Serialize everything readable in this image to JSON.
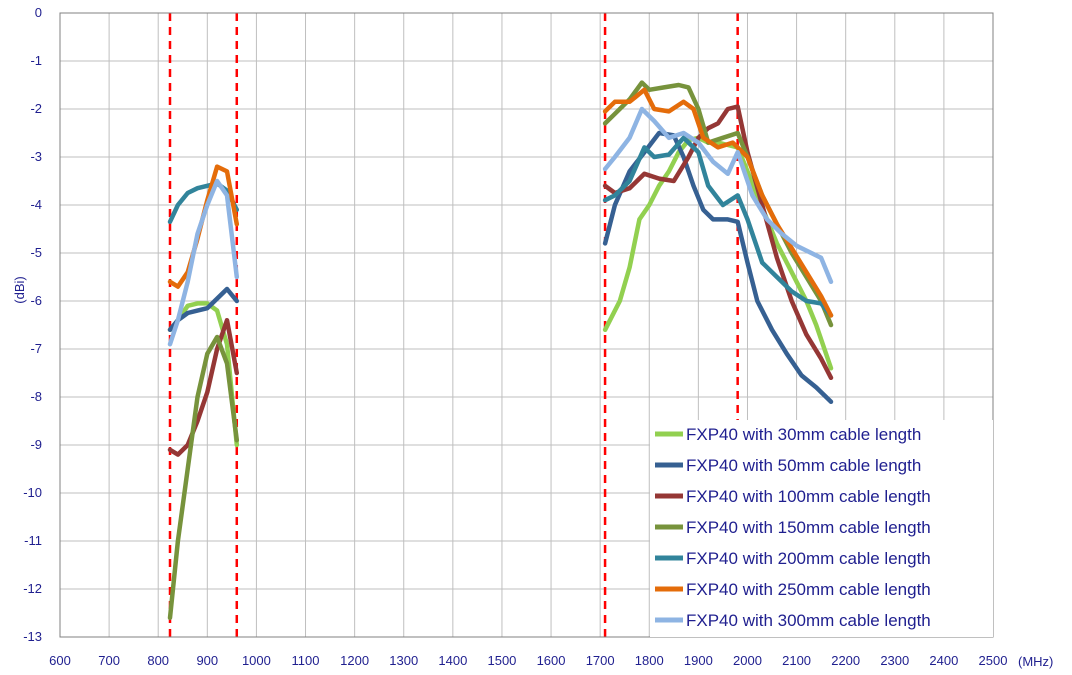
{
  "chart_data": {
    "type": "line",
    "xlabel": "(MHz)",
    "ylabel": "(dBi)",
    "xlim": [
      600,
      2500
    ],
    "ylim": [
      -13,
      0
    ],
    "xticks": [
      600,
      700,
      800,
      900,
      1000,
      1100,
      1200,
      1300,
      1400,
      1500,
      1600,
      1700,
      1800,
      1900,
      2000,
      2100,
      2200,
      2300,
      2400,
      2500
    ],
    "yticks": [
      0,
      -1,
      -2,
      -3,
      -4,
      -5,
      -6,
      -7,
      -8,
      -9,
      -10,
      -11,
      -12,
      -13
    ],
    "grid": true,
    "legend_position": "bottom-right",
    "band_markers": [
      824,
      960,
      1710,
      1980
    ],
    "series": [
      {
        "name": "FXP40 with 30mm cable length",
        "color": "#92d050",
        "segments": [
          [
            [
              824,
              -6.6
            ],
            [
              840,
              -6.4
            ],
            [
              860,
              -6.1
            ],
            [
              880,
              -6.05
            ],
            [
              900,
              -6.05
            ],
            [
              920,
              -6.2
            ],
            [
              940,
              -6.9
            ],
            [
              960,
              -9.0
            ]
          ],
          [
            [
              1710,
              -6.6
            ],
            [
              1740,
              -6.0
            ],
            [
              1760,
              -5.3
            ],
            [
              1780,
              -4.3
            ],
            [
              1800,
              -4.0
            ],
            [
              1820,
              -3.6
            ],
            [
              1840,
              -3.3
            ],
            [
              1860,
              -2.9
            ],
            [
              1880,
              -2.65
            ],
            [
              1900,
              -2.6
            ],
            [
              1920,
              -2.7
            ],
            [
              1940,
              -2.7
            ],
            [
              1960,
              -2.75
            ],
            [
              1980,
              -2.8
            ],
            [
              2000,
              -3.3
            ],
            [
              2020,
              -3.8
            ],
            [
              2040,
              -4.3
            ],
            [
              2060,
              -4.8
            ],
            [
              2080,
              -5.2
            ],
            [
              2100,
              -5.6
            ],
            [
              2120,
              -6.0
            ],
            [
              2140,
              -6.5
            ],
            [
              2170,
              -7.4
            ]
          ]
        ]
      },
      {
        "name": "FXP40 with 50mm cable length",
        "color": "#366092",
        "segments": [
          [
            [
              824,
              -6.6
            ],
            [
              840,
              -6.4
            ],
            [
              860,
              -6.25
            ],
            [
              880,
              -6.2
            ],
            [
              900,
              -6.15
            ],
            [
              920,
              -5.95
            ],
            [
              940,
              -5.75
            ],
            [
              960,
              -6.0
            ]
          ],
          [
            [
              1710,
              -4.8
            ],
            [
              1730,
              -4.0
            ],
            [
              1760,
              -3.3
            ],
            [
              1790,
              -2.9
            ],
            [
              1820,
              -2.5
            ],
            [
              1850,
              -2.55
            ],
            [
              1870,
              -3.0
            ],
            [
              1890,
              -3.6
            ],
            [
              1910,
              -4.1
            ],
            [
              1930,
              -4.3
            ],
            [
              1960,
              -4.3
            ],
            [
              1980,
              -4.35
            ],
            [
              2000,
              -5.2
            ],
            [
              2020,
              -6.0
            ],
            [
              2050,
              -6.6
            ],
            [
              2080,
              -7.1
            ],
            [
              2110,
              -7.55
            ],
            [
              2140,
              -7.8
            ],
            [
              2170,
              -8.1
            ]
          ]
        ]
      },
      {
        "name": "FXP40 with 100mm cable length",
        "color": "#953735",
        "segments": [
          [
            [
              824,
              -9.1
            ],
            [
              840,
              -9.2
            ],
            [
              860,
              -9.0
            ],
            [
              880,
              -8.5
            ],
            [
              900,
              -7.9
            ],
            [
              920,
              -7.0
            ],
            [
              940,
              -6.4
            ],
            [
              960,
              -7.5
            ]
          ],
          [
            [
              1710,
              -3.6
            ],
            [
              1730,
              -3.75
            ],
            [
              1760,
              -3.65
            ],
            [
              1790,
              -3.35
            ],
            [
              1820,
              -3.45
            ],
            [
              1850,
              -3.5
            ],
            [
              1880,
              -3.0
            ],
            [
              1900,
              -2.6
            ],
            [
              1920,
              -2.4
            ],
            [
              1940,
              -2.3
            ],
            [
              1960,
              -2.0
            ],
            [
              1980,
              -1.95
            ],
            [
              2000,
              -2.9
            ],
            [
              2030,
              -4.0
            ],
            [
              2060,
              -5.1
            ],
            [
              2090,
              -6.0
            ],
            [
              2120,
              -6.7
            ],
            [
              2150,
              -7.2
            ],
            [
              2170,
              -7.6
            ]
          ]
        ]
      },
      {
        "name": "FXP40 with 150mm cable length",
        "color": "#77933c",
        "segments": [
          [
            [
              824,
              -12.6
            ],
            [
              840,
              -11.0
            ],
            [
              860,
              -9.5
            ],
            [
              880,
              -8.0
            ],
            [
              900,
              -7.1
            ],
            [
              920,
              -6.75
            ],
            [
              940,
              -7.3
            ],
            [
              960,
              -8.9
            ]
          ],
          [
            [
              1710,
              -2.3
            ],
            [
              1730,
              -2.1
            ],
            [
              1760,
              -1.8
            ],
            [
              1785,
              -1.45
            ],
            [
              1800,
              -1.6
            ],
            [
              1830,
              -1.55
            ],
            [
              1860,
              -1.5
            ],
            [
              1880,
              -1.55
            ],
            [
              1900,
              -2.0
            ],
            [
              1920,
              -2.7
            ],
            [
              1950,
              -2.6
            ],
            [
              1980,
              -2.5
            ],
            [
              2000,
              -3.0
            ],
            [
              2030,
              -3.8
            ],
            [
              2060,
              -4.4
            ],
            [
              2090,
              -5.0
            ],
            [
              2120,
              -5.5
            ],
            [
              2150,
              -6.0
            ],
            [
              2170,
              -6.5
            ]
          ]
        ]
      },
      {
        "name": "FXP40 with 200mm cable length",
        "color": "#31849b",
        "segments": [
          [
            [
              824,
              -4.35
            ],
            [
              840,
              -4.0
            ],
            [
              860,
              -3.75
            ],
            [
              880,
              -3.65
            ],
            [
              900,
              -3.6
            ],
            [
              920,
              -3.55
            ],
            [
              940,
              -3.7
            ],
            [
              960,
              -4.1
            ]
          ],
          [
            [
              1710,
              -3.9
            ],
            [
              1730,
              -3.8
            ],
            [
              1760,
              -3.5
            ],
            [
              1790,
              -2.8
            ],
            [
              1810,
              -3.0
            ],
            [
              1840,
              -2.95
            ],
            [
              1870,
              -2.6
            ],
            [
              1900,
              -2.9
            ],
            [
              1920,
              -3.6
            ],
            [
              1950,
              -4.0
            ],
            [
              1980,
              -3.8
            ],
            [
              2000,
              -4.3
            ],
            [
              2030,
              -5.2
            ],
            [
              2060,
              -5.5
            ],
            [
              2090,
              -5.8
            ],
            [
              2120,
              -6.0
            ],
            [
              2150,
              -6.05
            ],
            [
              2170,
              -6.3
            ]
          ]
        ]
      },
      {
        "name": "FXP40 with 250mm cable length",
        "color": "#e46c0a",
        "segments": [
          [
            [
              824,
              -5.6
            ],
            [
              840,
              -5.7
            ],
            [
              860,
              -5.4
            ],
            [
              880,
              -4.7
            ],
            [
              900,
              -3.9
            ],
            [
              920,
              -3.2
            ],
            [
              940,
              -3.3
            ],
            [
              960,
              -4.4
            ]
          ],
          [
            [
              1710,
              -2.05
            ],
            [
              1730,
              -1.85
            ],
            [
              1760,
              -1.85
            ],
            [
              1790,
              -1.6
            ],
            [
              1810,
              -2.0
            ],
            [
              1840,
              -2.05
            ],
            [
              1870,
              -1.85
            ],
            [
              1890,
              -2.0
            ],
            [
              1910,
              -2.6
            ],
            [
              1940,
              -2.8
            ],
            [
              1970,
              -2.7
            ],
            [
              2000,
              -3.0
            ],
            [
              2030,
              -3.8
            ],
            [
              2060,
              -4.4
            ],
            [
              2090,
              -4.9
            ],
            [
              2120,
              -5.4
            ],
            [
              2150,
              -5.9
            ],
            [
              2170,
              -6.3
            ]
          ]
        ]
      },
      {
        "name": "FXP40 with 300mm cable length",
        "color": "#8eb4e3",
        "segments": [
          [
            [
              824,
              -6.9
            ],
            [
              840,
              -6.4
            ],
            [
              860,
              -5.6
            ],
            [
              880,
              -4.6
            ],
            [
              900,
              -4.0
            ],
            [
              920,
              -3.5
            ],
            [
              940,
              -3.8
            ],
            [
              960,
              -5.5
            ]
          ],
          [
            [
              1710,
              -3.25
            ],
            [
              1730,
              -3.0
            ],
            [
              1760,
              -2.6
            ],
            [
              1785,
              -2.0
            ],
            [
              1810,
              -2.25
            ],
            [
              1840,
              -2.6
            ],
            [
              1870,
              -2.5
            ],
            [
              1900,
              -2.7
            ],
            [
              1930,
              -3.1
            ],
            [
              1960,
              -3.35
            ],
            [
              1980,
              -2.9
            ],
            [
              2010,
              -3.8
            ],
            [
              2040,
              -4.3
            ],
            [
              2070,
              -4.6
            ],
            [
              2100,
              -4.85
            ],
            [
              2130,
              -5.0
            ],
            [
              2150,
              -5.1
            ],
            [
              2170,
              -5.6
            ]
          ]
        ]
      }
    ]
  }
}
